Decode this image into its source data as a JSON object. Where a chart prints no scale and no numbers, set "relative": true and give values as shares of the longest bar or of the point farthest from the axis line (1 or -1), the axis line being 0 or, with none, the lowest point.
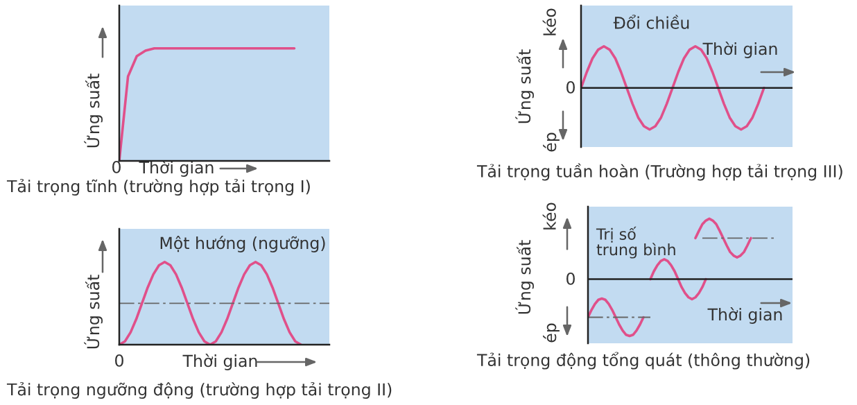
{
  "chart_data": [
    {
      "type": "line",
      "relative": true,
      "title": "Tải trọng tĩnh (trường hợp tải trọng I)",
      "xlabel": "Thời gian",
      "ylabel": "Ứng suất",
      "annotations": [
        "0"
      ],
      "categories": [
        null,
        null,
        null,
        null,
        null,
        null,
        null,
        null,
        null,
        null,
        null,
        null,
        null,
        null,
        null,
        null,
        null,
        null,
        null,
        null,
        null,
        null,
        null,
        null,
        null
      ],
      "series": [
        {
          "color": "#e0508a",
          "values": [
            0,
            0.75,
            0.93,
            0.98,
            1,
            1,
            1,
            1,
            1,
            1,
            1,
            1,
            1,
            1,
            1,
            1,
            1,
            1,
            1,
            1,
            1,
            null,
            null,
            null,
            null
          ]
        }
      ]
    },
    {
      "type": "line",
      "relative": true,
      "title": "Tải trọng ngưỡng động (trường hợp tải trọng II)",
      "xlabel": "Thời gian",
      "ylabel": "Ứng suất",
      "annotations": [
        "Một hướng (ngưỡng)",
        "0"
      ],
      "categories": [
        null,
        null,
        null,
        null,
        null,
        null,
        null,
        null,
        null,
        null,
        null,
        null,
        null,
        null,
        null,
        null,
        null,
        null,
        null,
        null,
        null,
        null,
        null,
        null,
        null,
        null,
        null,
        null,
        null,
        null,
        null,
        null,
        null,
        null,
        null,
        null,
        null,
        null
      ],
      "series": [
        {
          "color": "#e0508a",
          "values": [
            0,
            0.04,
            0.15,
            0.31,
            0.5,
            0.69,
            0.85,
            0.96,
            1,
            0.96,
            0.85,
            0.69,
            0.5,
            0.31,
            0.15,
            0.04,
            0,
            0.04,
            0.15,
            0.31,
            0.5,
            0.69,
            0.85,
            0.96,
            1,
            0.96,
            0.85,
            0.69,
            0.5,
            0.31,
            0.15,
            0.04,
            0,
            null,
            null,
            null,
            null,
            null
          ]
        }
      ],
      "ref_lines": [
        {
          "axis": "y",
          "value": 0.5,
          "color": "#666666",
          "line_style": "dashed"
        }
      ]
    },
    {
      "type": "line",
      "relative": true,
      "title": "Tải trọng tuần hoàn (Trường hợp tải trọng III)",
      "xlabel": "Thời gian",
      "ylabel": "Ứng suất",
      "annotations": [
        "Đổi chiều",
        "0",
        "kéo",
        "ép"
      ],
      "categories": [
        null,
        null,
        null,
        null,
        null,
        null,
        null,
        null,
        null,
        null,
        null,
        null,
        null,
        null,
        null,
        null,
        null,
        null,
        null,
        null,
        null,
        null,
        null,
        null,
        null,
        null,
        null,
        null,
        null,
        null,
        null,
        null,
        null,
        null,
        null,
        null,
        null,
        null
      ],
      "series": [
        {
          "color": "#e0508a",
          "values": [
            0,
            0.38,
            0.71,
            0.92,
            1,
            0.92,
            0.71,
            0.38,
            0,
            -0.38,
            -0.71,
            -0.92,
            -1,
            -0.92,
            -0.71,
            -0.38,
            0,
            0.38,
            0.71,
            0.92,
            1,
            0.92,
            0.71,
            0.38,
            0,
            -0.38,
            -0.71,
            -0.92,
            -1,
            -0.92,
            -0.71,
            -0.38,
            0,
            null,
            null,
            null,
            null,
            null
          ]
        }
      ]
    },
    {
      "type": "line",
      "relative": true,
      "title": "Tải trọng động tổng quát (thông thường)",
      "xlabel": "Thời gian",
      "ylabel": "Ứng suất",
      "annotations": [
        "Trị số\ntrung bình",
        "0",
        "kéo",
        "ép"
      ],
      "categories": [
        null,
        null,
        null,
        null,
        null,
        null,
        null,
        null,
        null,
        null,
        null,
        null,
        null,
        null,
        null,
        null,
        null,
        null,
        null,
        null,
        null,
        null,
        null,
        null,
        null,
        null,
        null,
        null,
        null,
        null,
        null,
        null,
        null,
        null,
        null,
        null,
        null,
        null,
        null,
        null,
        null,
        null,
        null,
        null,
        null,
        null,
        null,
        null,
        null,
        null,
        null,
        null,
        null,
        null,
        null,
        null,
        null,
        null,
        null,
        null
      ],
      "series": [
        {
          "color": "#e0508a",
          "values": [
            -0.63,
            -0.51,
            -0.41,
            -0.34,
            -0.32,
            -0.34,
            -0.41,
            -0.51,
            -0.63,
            -0.75,
            -0.85,
            -0.92,
            -0.94,
            -0.92,
            -0.85,
            -0.75,
            -0.63,
            null,
            null,
            null,
            null,
            null,
            null,
            null,
            null,
            null,
            null,
            null,
            null,
            null,
            null,
            null,
            null,
            null,
            null,
            null,
            null,
            null,
            null,
            null,
            null,
            null,
            null,
            null,
            null,
            null,
            null,
            null,
            null,
            null,
            null,
            null,
            null,
            null,
            null,
            null,
            null,
            null,
            null,
            null
          ]
        },
        {
          "color": "#e0508a",
          "values": [
            null,
            null,
            null,
            null,
            null,
            null,
            null,
            null,
            null,
            null,
            null,
            null,
            null,
            null,
            null,
            null,
            null,
            null,
            0,
            0.13,
            0.23,
            0.3,
            0.33,
            0.3,
            0.23,
            0.13,
            0,
            -0.13,
            -0.23,
            -0.3,
            -0.33,
            -0.3,
            -0.23,
            -0.13,
            0,
            null,
            null,
            null,
            null,
            null,
            null,
            null,
            null,
            null,
            null,
            null,
            null,
            null,
            null,
            null,
            null,
            null,
            null,
            null,
            null,
            null,
            null,
            null,
            null,
            null
          ]
        },
        {
          "color": "#e0508a",
          "values": [
            null,
            null,
            null,
            null,
            null,
            null,
            null,
            null,
            null,
            null,
            null,
            null,
            null,
            null,
            null,
            null,
            null,
            null,
            null,
            null,
            null,
            null,
            null,
            null,
            null,
            null,
            null,
            null,
            null,
            null,
            null,
            0.68,
            0.8,
            0.91,
            0.97,
            1,
            0.97,
            0.91,
            0.8,
            0.68,
            0.56,
            0.45,
            0.39,
            0.36,
            0.39,
            0.45,
            0.56,
            0.68,
            null,
            null,
            null,
            null,
            null,
            null,
            null,
            null,
            null,
            null,
            null,
            null
          ]
        },
        {
          "color": "#666666",
          "line_style": "dashed",
          "values": [
            -0.63,
            -0.63,
            -0.63,
            -0.63,
            -0.63,
            -0.63,
            -0.63,
            -0.63,
            -0.63,
            -0.63,
            -0.63,
            -0.63,
            -0.63,
            -0.63,
            -0.63,
            -0.63,
            -0.63,
            -0.63,
            -0.63,
            null,
            null,
            null,
            null,
            null,
            null,
            null,
            null,
            null,
            null,
            null,
            null,
            null,
            null,
            null,
            null,
            null,
            null,
            null,
            null,
            null,
            null,
            null,
            null,
            null,
            null,
            null,
            null,
            null,
            null,
            null,
            null,
            null,
            null,
            null,
            null,
            null,
            null,
            null,
            null,
            null
          ]
        },
        {
          "color": "#666666",
          "line_style": "dashed",
          "values": [
            null,
            null,
            null,
            null,
            null,
            null,
            null,
            null,
            null,
            null,
            null,
            null,
            null,
            null,
            null,
            null,
            null,
            null,
            null,
            null,
            null,
            null,
            null,
            null,
            null,
            null,
            null,
            null,
            null,
            null,
            null,
            null,
            null,
            0.68,
            0.68,
            0.68,
            0.68,
            0.68,
            0.68,
            0.68,
            0.68,
            0.68,
            0.68,
            0.68,
            0.68,
            0.68,
            0.68,
            0.68,
            0.68,
            0.68,
            0.68,
            0.68,
            0.68,
            0.68,
            0.68,
            null,
            null,
            null,
            null,
            null
          ]
        }
      ]
    }
  ]
}
